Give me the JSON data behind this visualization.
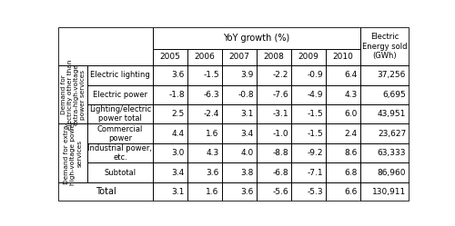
{
  "row_group1_label": "Demand for\nelectricity other than\nextra-high-voltage\npower services",
  "row_group2_label": "Demand for extra-\nhigh-voltage power\nservices",
  "rows": [
    [
      "Electric lighting",
      "3.6",
      "-1.5",
      "3.9",
      "-2.2",
      "-0.9",
      "6.4",
      "37,256"
    ],
    [
      "Electric power",
      "-1.8",
      "-6.3",
      "-0.8",
      "-7.6",
      "-4.9",
      "4.3",
      "6,695"
    ],
    [
      "Lighting/electric\npower total",
      "2.5",
      "-2.4",
      "3.1",
      "-3.1",
      "-1.5",
      "6.0",
      "43,951"
    ],
    [
      "Commercial\npower",
      "4.4",
      "1.6",
      "3.4",
      "-1.0",
      "-1.5",
      "2.4",
      "23,627"
    ],
    [
      "Industrial power,\netc.",
      "3.0",
      "4.3",
      "4.0",
      "-8.8",
      "-9.2",
      "8.6",
      "63,333"
    ],
    [
      "Subtotal",
      "3.4",
      "3.6",
      "3.8",
      "-6.8",
      "-7.1",
      "6.8",
      "86,960"
    ]
  ],
  "total_row": [
    "Total",
    "3.1",
    "1.6",
    "3.6",
    "-5.6",
    "-5.3",
    "6.6",
    "130,911"
  ],
  "years": [
    "2005",
    "2006",
    "2007",
    "2008",
    "2009",
    "2010"
  ],
  "yoy_header": "YoY growth (%)",
  "energy_header": "Electric\nEnergy sold\n(GWh)",
  "bg_color": "#ffffff",
  "line_color": "#000000",
  "font_size": 6.5
}
